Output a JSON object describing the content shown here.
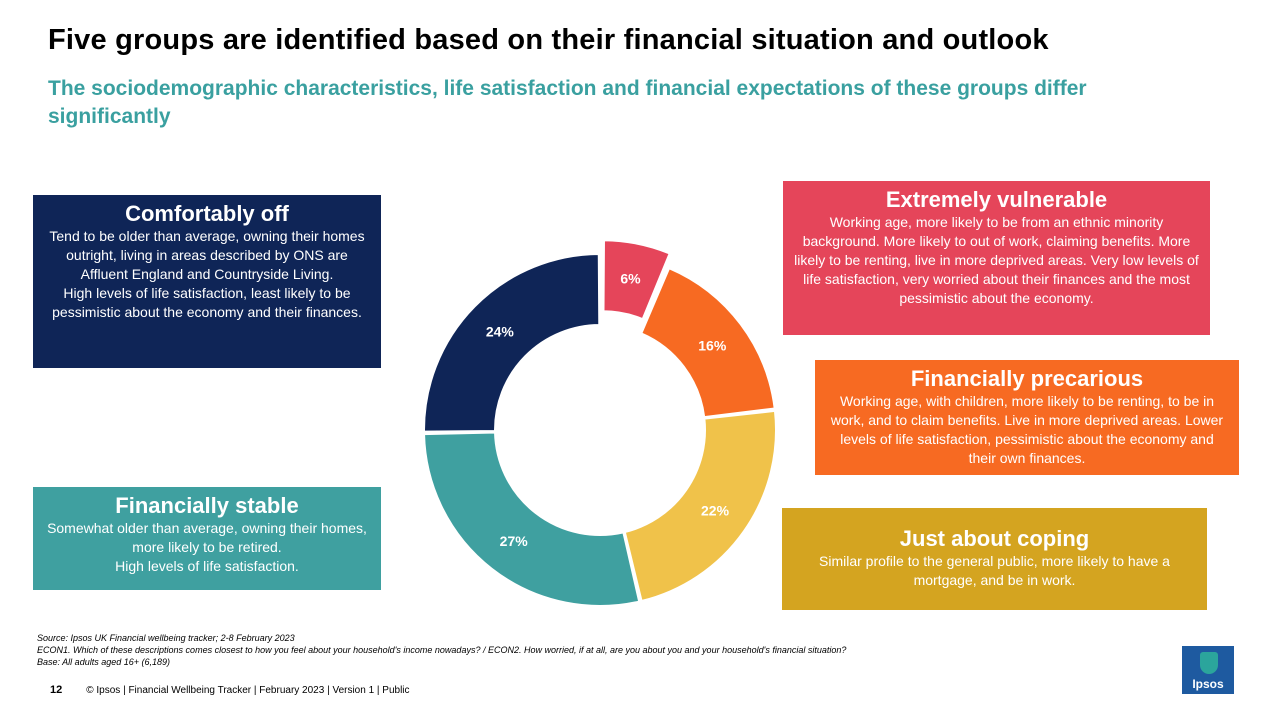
{
  "header": {
    "title": "Five groups are identified based on their financial situation and outlook",
    "subtitle": "The sociodemographic characteristics,  life satisfaction and financial expectations of these groups differ significantly"
  },
  "groups": {
    "comfortably_off": {
      "heading": "Comfortably off",
      "description": "Tend to be older than average, owning their homes outright, living in areas described by ONS are Affluent England and Countryside Living.\nHigh levels of life satisfaction, least likely to be pessimistic about the economy and their finances.",
      "color": "#0f2557"
    },
    "financially_stable": {
      "heading": "Financially stable",
      "description": "Somewhat older than average, owning their homes, more likely to be retired.\nHigh levels of life satisfaction.",
      "color": "#3fa0a0"
    },
    "extremely_vulnerable": {
      "heading": "Extremely vulnerable",
      "description": "Working age, more likely to be from an ethnic minority background. More likely to out of work, claiming benefits. More likely to be renting, live in more deprived areas. Very low levels of life satisfaction, very worried about their finances and the most pessimistic about the economy.",
      "color": "#e5455a"
    },
    "financially_precarious": {
      "heading": "Financially precarious",
      "description": "Working age, with children, more likely to be renting, to be in work, and to claim benefits. Live in more deprived areas. Lower levels of life satisfaction, pessimistic about the economy and their own finances.",
      "color": "#f76a22"
    },
    "just_about_coping": {
      "heading": "Just about coping",
      "description": "Similar profile to the general public, more likely to have a mortgage, and be in work.",
      "color": "#d4a420"
    }
  },
  "chart_data": {
    "type": "pie",
    "variant": "donut",
    "categories": [
      "Extremely vulnerable",
      "Financially precarious",
      "Just about coping",
      "Financially stable",
      "Comfortably off"
    ],
    "values": [
      6,
      16,
      22,
      27,
      24
    ],
    "labels": [
      "6%",
      "16%",
      "22%",
      "27%",
      "24%"
    ],
    "colors": [
      "#e5455a",
      "#f76a22",
      "#f0c24a",
      "#3fa0a0",
      "#0f2557"
    ],
    "exploded_slice": "Extremely vulnerable"
  },
  "footnotes": {
    "source": "Source: Ipsos UK Financial wellbeing tracker; 2-8 February 2023",
    "question": "ECON1. Which of these descriptions comes closest to how you feel about your household's income nowadays? / ECON2. How worried, if at all, are you about you and your household's financial situation?",
    "base": "Base: All adults aged 16+ (6,189)"
  },
  "footer": {
    "page_number": "12",
    "text": "© Ipsos | Financial Wellbeing Tracker | February 2023 | Version 1 | Public",
    "logo_text": "Ipsos"
  }
}
